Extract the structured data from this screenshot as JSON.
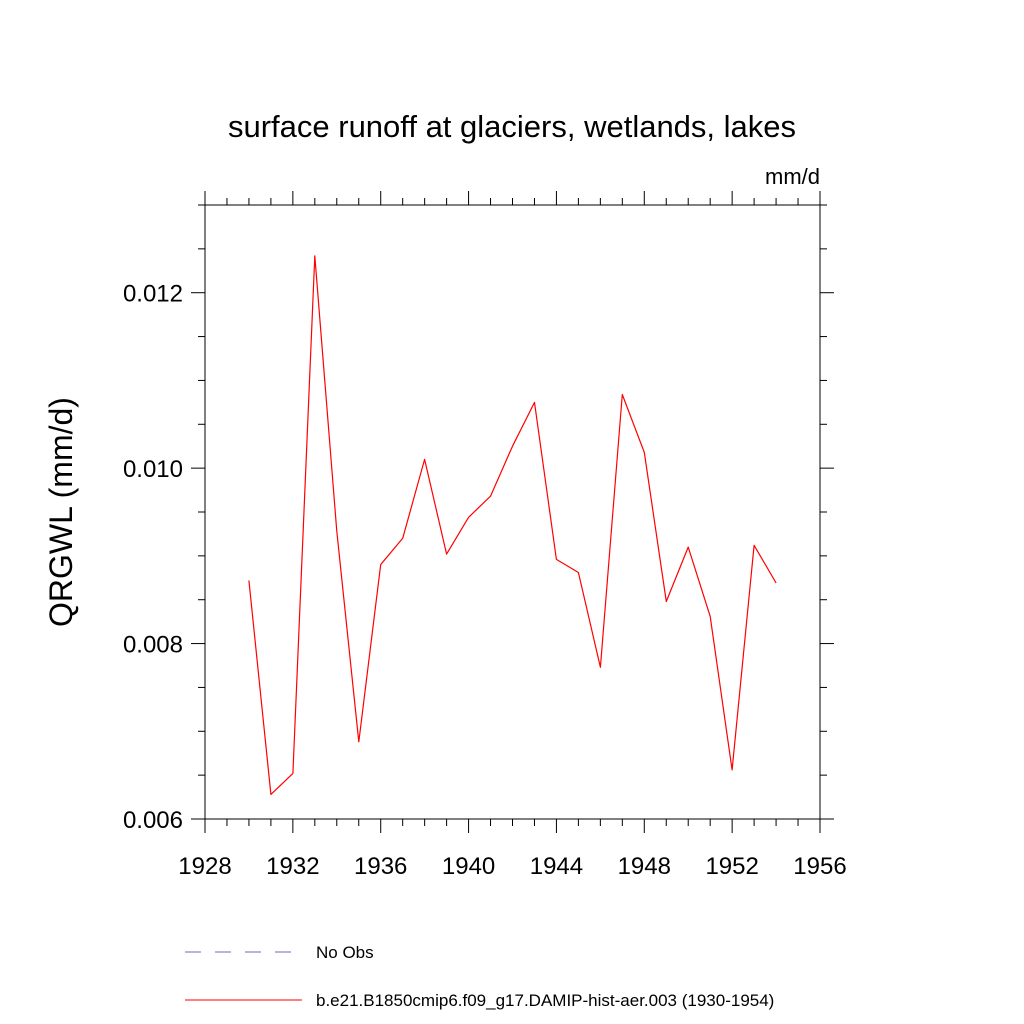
{
  "chart_data": {
    "type": "line",
    "title": "surface runoff at glaciers, wetlands, lakes",
    "units": "mm/d",
    "ylabel": "QRGWL  (mm/d)",
    "xlabel": "",
    "xlim": [
      1928,
      1956
    ],
    "ylim": [
      0.006,
      0.013
    ],
    "x_ticks": [
      1928,
      1932,
      1936,
      1940,
      1944,
      1948,
      1952,
      1956
    ],
    "x_tick_labels": [
      "1928",
      "1932",
      "1936",
      "1940",
      "1944",
      "1948",
      "1952",
      "1956"
    ],
    "y_ticks": [
      0.006,
      0.008,
      0.01,
      0.012
    ],
    "y_tick_labels": [
      "0.006",
      "0.008",
      "0.010",
      "0.012"
    ],
    "grid": false,
    "legend_position": "bottom",
    "series": [
      {
        "name": "b.e21.B1850cmip6.f09_g17.DAMIP-hist-aer.003 (1930-1954)",
        "color": "#ff0000",
        "dash": "solid",
        "x": [
          1930,
          1931,
          1932,
          1933,
          1934,
          1935,
          1936,
          1937,
          1938,
          1939,
          1940,
          1941,
          1942,
          1943,
          1944,
          1945,
          1946,
          1947,
          1948,
          1949,
          1950,
          1951,
          1952,
          1953,
          1954
        ],
        "y": [
          0.00872,
          0.00628,
          0.00652,
          0.01242,
          0.00928,
          0.00688,
          0.0089,
          0.0092,
          0.0101,
          0.00902,
          0.00944,
          0.00968,
          0.01025,
          0.01075,
          0.00896,
          0.00881,
          0.00773,
          0.01084,
          0.01018,
          0.00848,
          0.0091,
          0.00831,
          0.00656,
          0.00912,
          0.00869
        ]
      }
    ],
    "legend": [
      {
        "label": "No Obs",
        "color": "#6a6ab8",
        "dash": "dashed"
      },
      {
        "label": "b.e21.B1850cmip6.f09_g17.DAMIP-hist-aer.003 (1930-1954)",
        "color": "#ff0000",
        "dash": "solid"
      }
    ]
  }
}
